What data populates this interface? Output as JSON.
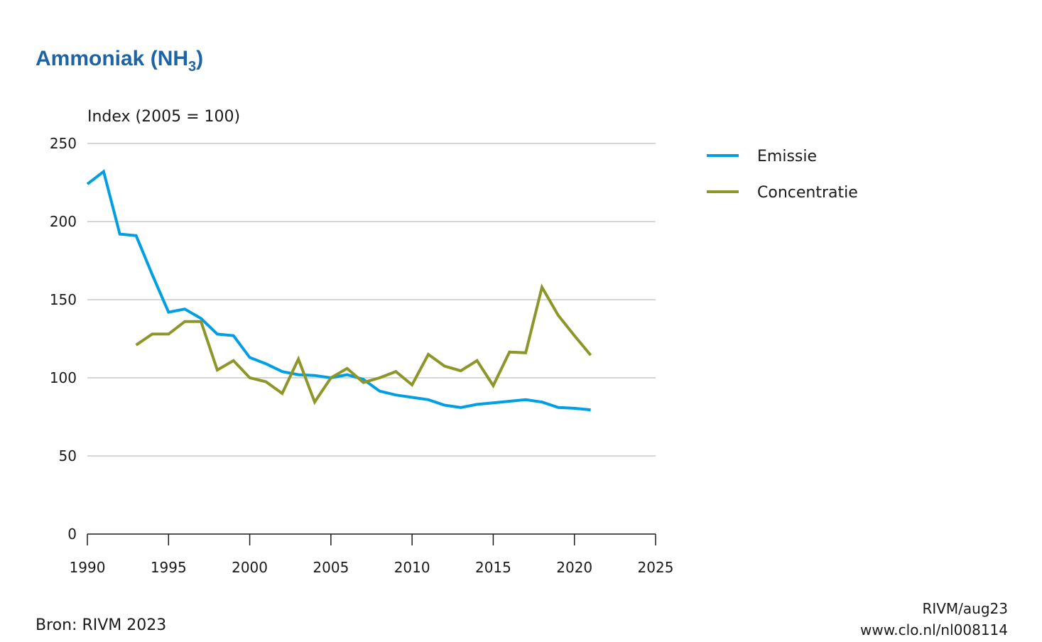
{
  "title": {
    "main": "Ammoniak (NH",
    "sub": "3",
    "close": ")"
  },
  "footer": {
    "source": "Bron: RIVM 2023",
    "credit_line1": "RIVM/aug23",
    "credit_line2": "www.clo.nl/nl008114"
  },
  "chart_data": {
    "type": "line",
    "ylabel": "Index (2005 = 100)",
    "xlim": [
      1990,
      2025
    ],
    "ylim": [
      0,
      250
    ],
    "xticks": [
      1990,
      1995,
      2000,
      2005,
      2010,
      2015,
      2020,
      2025
    ],
    "yticks": [
      0,
      50,
      100,
      150,
      200,
      250
    ],
    "grid": "horizontal",
    "legend_position": "right",
    "series": [
      {
        "name": "Emissie",
        "color": "#009fe3",
        "x": [
          1990,
          1991,
          1992,
          1993,
          1994,
          1995,
          1996,
          1997,
          1998,
          1999,
          2000,
          2001,
          2002,
          2003,
          2004,
          2005,
          2006,
          2007,
          2008,
          2009,
          2010,
          2011,
          2012,
          2013,
          2014,
          2015,
          2016,
          2017,
          2018,
          2019,
          2020,
          2021
        ],
        "values": [
          224,
          232,
          192,
          191,
          166,
          142,
          144,
          138,
          128,
          127,
          113,
          109,
          104,
          102,
          101.5,
          100,
          102,
          99,
          91.5,
          89,
          87.5,
          86,
          82.5,
          81,
          83,
          84,
          85,
          86,
          84.5,
          81,
          80.5,
          79.5
        ]
      },
      {
        "name": "Concentratie",
        "color": "#8d9628",
        "x": [
          1993,
          1994,
          1995,
          1996,
          1997,
          1998,
          1999,
          2000,
          2001,
          2002,
          2003,
          2004,
          2005,
          2006,
          2007,
          2008,
          2009,
          2010,
          2011,
          2012,
          2013,
          2014,
          2015,
          2016,
          2017,
          2018,
          2019,
          2020,
          2021
        ],
        "values": [
          121,
          128,
          128,
          136,
          136,
          105,
          111,
          100,
          97.5,
          90,
          112,
          84.5,
          100,
          106,
          97,
          100,
          104,
          95.5,
          115,
          107.5,
          104.5,
          111,
          95,
          116.5,
          116,
          158,
          140,
          127,
          114.5
        ]
      }
    ]
  }
}
